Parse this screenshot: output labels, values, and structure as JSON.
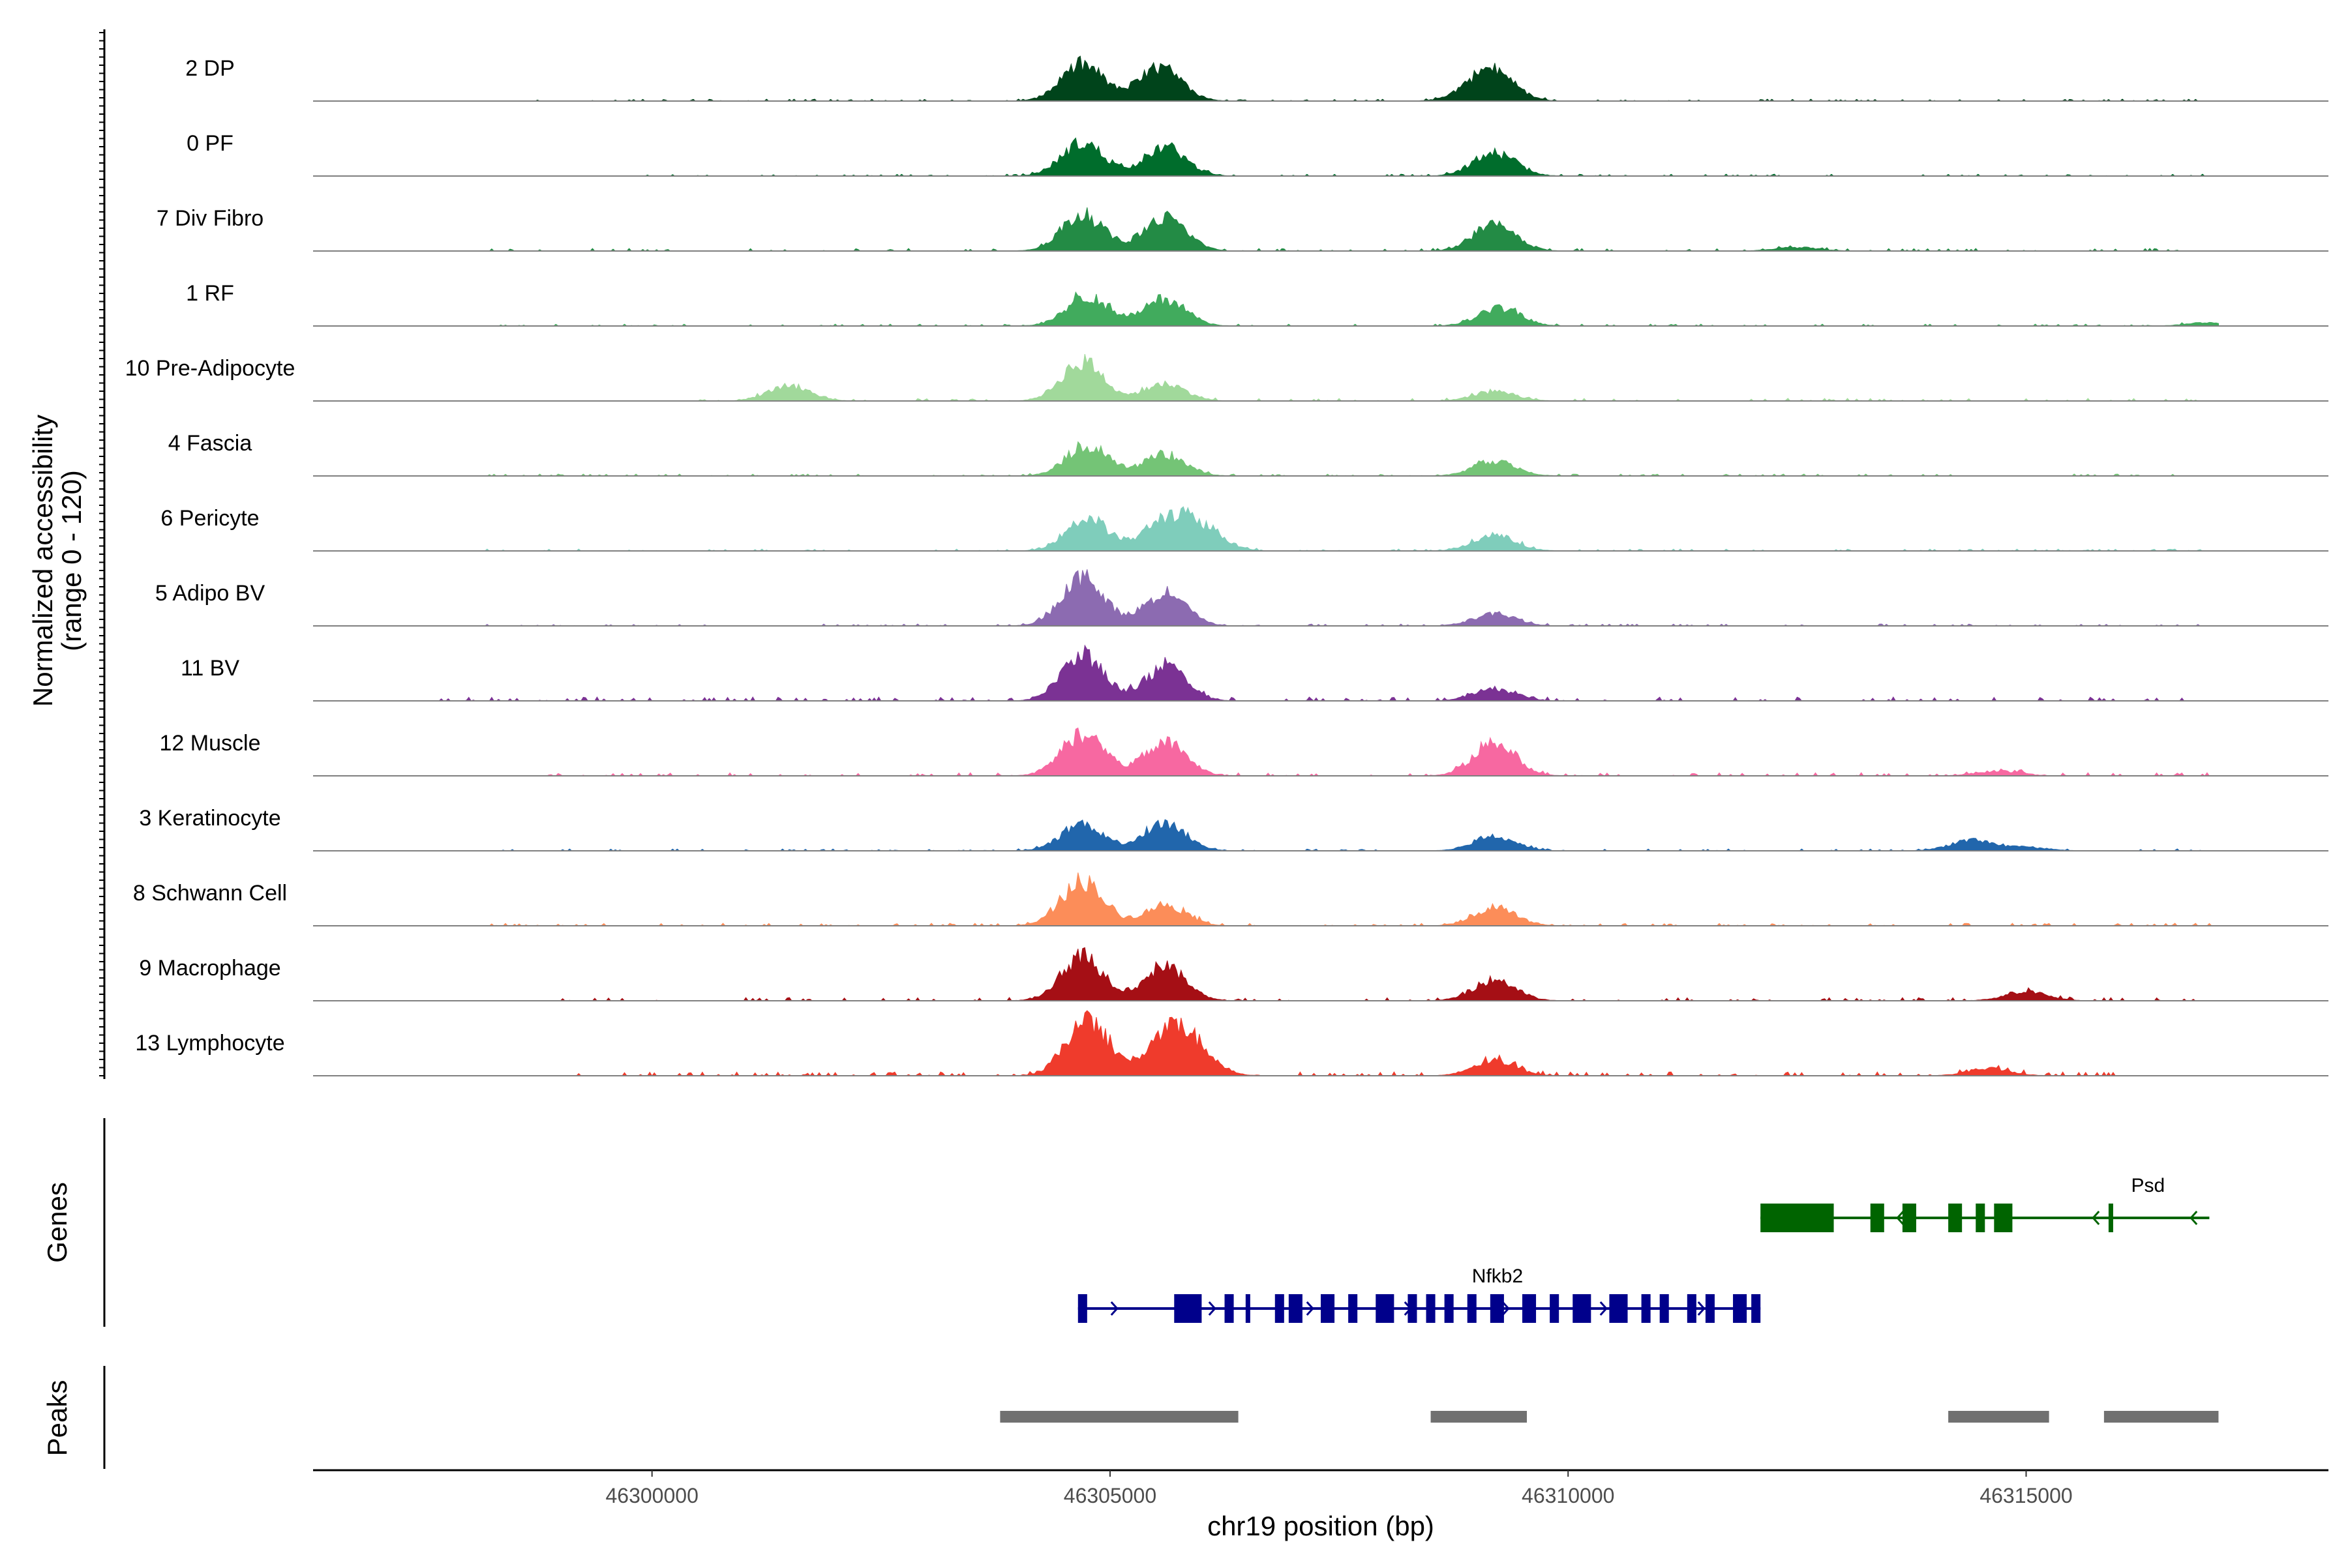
{
  "chart_data": {
    "type": "area",
    "chromosome": "chr19",
    "xlabel": "chr19 position (bp)",
    "ylabel": "Normalized accessibility",
    "ylabel_range": "(range 0 - 120)",
    "y_range": [
      0,
      120
    ],
    "xlim": [
      46296300,
      46318300
    ],
    "x_ticks": [
      46300000,
      46305000,
      46310000,
      46315000
    ],
    "x_tick_labels": [
      "46300000",
      "46305000",
      "46310000",
      "46315000"
    ],
    "tracks": [
      {
        "name": "2 DP",
        "color": "#00441b",
        "peaks": [
          [
            46304700,
            60
          ],
          [
            46305550,
            55
          ],
          [
            46309200,
            40
          ],
          [
            46309000,
            18
          ]
        ],
        "noise": [
          [
            46298200,
            46317000,
            3
          ]
        ]
      },
      {
        "name": "0 PF",
        "color": "#006d2c",
        "peaks": [
          [
            46304700,
            55
          ],
          [
            46305600,
            48
          ],
          [
            46309200,
            38
          ]
        ],
        "noise": [
          [
            46299500,
            46317000,
            3
          ]
        ]
      },
      {
        "name": "7 Div Fibro",
        "color": "#238b45",
        "peaks": [
          [
            46304700,
            60
          ],
          [
            46305600,
            55
          ],
          [
            46309200,
            45
          ],
          [
            46312500,
            6
          ]
        ],
        "noise": [
          [
            46298200,
            46317000,
            4
          ]
        ]
      },
      {
        "name": "1 RF",
        "color": "#41ab5d",
        "peaks": [
          [
            46304750,
            50
          ],
          [
            46305600,
            45
          ],
          [
            46309250,
            30
          ],
          [
            46317000,
            6
          ]
        ],
        "noise": [
          [
            46298200,
            46317000,
            3
          ]
        ]
      },
      {
        "name": "10 Pre-Adipocyte",
        "color": "#a1d99b",
        "peaks": [
          [
            46301500,
            25
          ],
          [
            46304700,
            65
          ],
          [
            46305600,
            28
          ],
          [
            46309200,
            15
          ]
        ],
        "noise": [
          [
            46300500,
            46317000,
            4
          ]
        ]
      },
      {
        "name": "4 Fascia",
        "color": "#74c476",
        "peaks": [
          [
            46304750,
            50
          ],
          [
            46305600,
            35
          ],
          [
            46309200,
            25
          ]
        ],
        "noise": [
          [
            46298200,
            46317000,
            3
          ]
        ]
      },
      {
        "name": "6 Pericyte",
        "color": "#7fcdbb",
        "peaks": [
          [
            46304750,
            55
          ],
          [
            46305600,
            50
          ],
          [
            46306000,
            38
          ],
          [
            46309200,
            25
          ]
        ],
        "noise": [
          [
            46298200,
            46317000,
            3
          ]
        ]
      },
      {
        "name": "5 Adipo BV",
        "color": "#8c6bb1",
        "peaks": [
          [
            46304700,
            80
          ],
          [
            46305600,
            55
          ],
          [
            46309200,
            20
          ]
        ],
        "noise": [
          [
            46298200,
            46317000,
            3
          ]
        ]
      },
      {
        "name": "11 BV",
        "color": "#7b3294",
        "peaks": [
          [
            46304700,
            75
          ],
          [
            46305600,
            55
          ],
          [
            46309200,
            20
          ]
        ],
        "noise": [
          [
            46297500,
            46317000,
            6
          ]
        ]
      },
      {
        "name": "12 Muscle",
        "color": "#f768a1",
        "peaks": [
          [
            46304700,
            70
          ],
          [
            46305600,
            55
          ],
          [
            46309200,
            55
          ],
          [
            46314700,
            8
          ]
        ],
        "noise": [
          [
            46298200,
            46317000,
            5
          ]
        ]
      },
      {
        "name": "3 Keratinocyte",
        "color": "#2166ac",
        "peaks": [
          [
            46304700,
            45
          ],
          [
            46305600,
            45
          ],
          [
            46309200,
            25
          ],
          [
            46314400,
            18
          ],
          [
            46315000,
            6
          ]
        ],
        "noise": [
          [
            46298200,
            46317000,
            3
          ]
        ]
      },
      {
        "name": "8 Schwann Cell",
        "color": "#fc8d59",
        "peaks": [
          [
            46304700,
            75
          ],
          [
            46305600,
            35
          ],
          [
            46309200,
            30
          ]
        ],
        "noise": [
          [
            46298200,
            46317000,
            4
          ]
        ]
      },
      {
        "name": "9 Macrophage",
        "color": "#a50f15",
        "peaks": [
          [
            46304700,
            75
          ],
          [
            46305600,
            55
          ],
          [
            46309200,
            35
          ],
          [
            46315000,
            15
          ]
        ],
        "noise": [
          [
            46299000,
            46317000,
            5
          ]
        ]
      },
      {
        "name": "13 Lymphocyte",
        "color": "#ef3b2c",
        "peaks": [
          [
            46304750,
            95
          ],
          [
            46305600,
            55
          ],
          [
            46305900,
            45
          ],
          [
            46309200,
            25
          ],
          [
            46314600,
            12
          ]
        ],
        "noise": [
          [
            46299200,
            46316000,
            6
          ]
        ]
      }
    ],
    "genes": [
      {
        "name": "Psd",
        "color": "#006400",
        "strand": "-",
        "start": 46312100,
        "end": 46317000,
        "exons": [
          [
            46312100,
            46312900
          ],
          [
            46313300,
            46313450
          ],
          [
            46313650,
            46313800
          ],
          [
            46314150,
            46314300
          ],
          [
            46314450,
            46314550
          ],
          [
            46314650,
            46314850
          ],
          [
            46315900,
            46315950
          ]
        ]
      },
      {
        "name": "Nfkb2",
        "color": "#00008b",
        "strand": "+",
        "start": 46304650,
        "end": 46312100,
        "exons": [
          [
            46304650,
            46304750
          ],
          [
            46305700,
            46306000
          ],
          [
            46306250,
            46306350
          ],
          [
            46306480,
            46306530
          ],
          [
            46306800,
            46306900
          ],
          [
            46306950,
            46307100
          ],
          [
            46307300,
            46307450
          ],
          [
            46307600,
            46307700
          ],
          [
            46307900,
            46308100
          ],
          [
            46308250,
            46308350
          ],
          [
            46308450,
            46308550
          ],
          [
            46308650,
            46308750
          ],
          [
            46308900,
            46309000
          ],
          [
            46309150,
            46309300
          ],
          [
            46309500,
            46309650
          ],
          [
            46309800,
            46309900
          ],
          [
            46310050,
            46310250
          ],
          [
            46310450,
            46310650
          ],
          [
            46310800,
            46310900
          ],
          [
            46311000,
            46311100
          ],
          [
            46311300,
            46311400
          ],
          [
            46311500,
            46311600
          ],
          [
            46311800,
            46311950
          ],
          [
            46312000,
            46312100
          ]
        ]
      }
    ],
    "peaks_track": [
      [
        46303800,
        46306400
      ],
      [
        46308500,
        46309550
      ],
      [
        46314150,
        46315250
      ],
      [
        46315850,
        46317100
      ]
    ],
    "genes_title": "Genes",
    "peaks_title": "Peaks"
  }
}
